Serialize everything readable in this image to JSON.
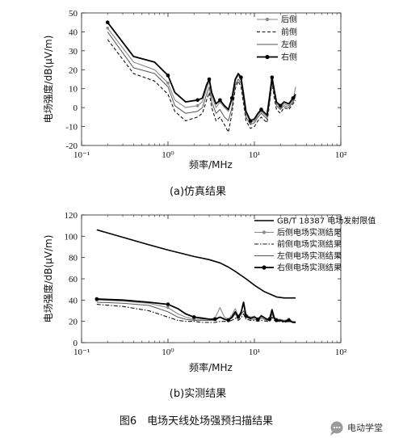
{
  "figure_caption": "图6　电场天线处场强预扫描结果",
  "watermark": {
    "text": "电动学堂",
    "icon": "chat-bubble-icon"
  },
  "chart_data": [
    {
      "type": "line",
      "caption": "(a)仿真结果",
      "xlabel": "频率/MHz",
      "ylabel": "电场强度/dB(μV/m)",
      "xscale": "log",
      "xlim": [
        0.1,
        100
      ],
      "ylim": [
        -20,
        50
      ],
      "x_ticks": [
        0.1,
        1,
        10,
        100
      ],
      "x_tick_labels": [
        "10⁻¹",
        "10⁰",
        "10¹",
        "10²"
      ],
      "y_ticks": [
        -20,
        -10,
        0,
        10,
        20,
        30,
        40,
        50
      ],
      "legend_position": "top-right",
      "grid": false,
      "series": [
        {
          "name": "后侧",
          "style": "solid-dot",
          "color": "#888888",
          "x": [
            0.2,
            0.4,
            0.7,
            1.0,
            1.2,
            1.6,
            2.2,
            2.5,
            2.8,
            3.0,
            3.2,
            3.6,
            4.0,
            4.5,
            5.0,
            5.5,
            6.0,
            6.5,
            7.0,
            7.5,
            8.0,
            9.0,
            10,
            11,
            12,
            14,
            15,
            16,
            17,
            18,
            20,
            22,
            25,
            28,
            30
          ],
          "values": [
            42,
            24,
            20,
            13,
            4,
            0,
            1,
            3,
            10,
            14,
            6,
            0,
            3,
            0,
            -2,
            4,
            14,
            17,
            15,
            6,
            -3,
            -8,
            -7,
            -4,
            -2,
            -5,
            5,
            15,
            8,
            2,
            0,
            2,
            1,
            4,
            11
          ]
        },
        {
          "name": "前侧",
          "style": "dashed",
          "color": "#111111",
          "x": [
            0.2,
            0.4,
            0.7,
            1.0,
            1.2,
            1.6,
            2.2,
            2.5,
            2.8,
            3.0,
            3.2,
            3.6,
            4.0,
            4.5,
            5.0,
            5.5,
            6.0,
            6.5,
            7.0,
            7.5,
            8.0,
            9.0,
            10,
            11,
            12,
            14,
            15,
            16,
            17,
            18,
            20,
            22,
            25,
            28,
            30
          ],
          "values": [
            36,
            18,
            14,
            7,
            -2,
            -7,
            -5,
            -3,
            4,
            8,
            0,
            -7,
            -5,
            -9,
            -13,
            -3,
            10,
            14,
            11,
            2,
            -7,
            -11,
            -10,
            -7,
            -5,
            -8,
            2,
            13,
            5,
            -1,
            -3,
            0,
            -1,
            2,
            4
          ]
        },
        {
          "name": "左侧",
          "style": "solid",
          "color": "#555555",
          "x": [
            0.2,
            0.4,
            0.7,
            1.0,
            1.2,
            1.6,
            2.2,
            2.5,
            2.8,
            3.0,
            3.2,
            3.6,
            4.0,
            4.5,
            5.0,
            5.5,
            6.0,
            6.5,
            7.0,
            7.5,
            8.0,
            9.0,
            10,
            11,
            12,
            14,
            15,
            16,
            17,
            18,
            20,
            22,
            25,
            28,
            30
          ],
          "values": [
            40,
            21,
            18,
            11,
            1,
            -3,
            -2,
            0,
            7,
            11,
            3,
            -3,
            -1,
            -5,
            -7,
            0,
            12,
            15,
            13,
            4,
            -5,
            -9,
            -8,
            -5,
            -3,
            -6,
            3,
            14,
            7,
            1,
            -1,
            1,
            0,
            3,
            6
          ]
        },
        {
          "name": "右侧",
          "style": "bold-dot",
          "color": "#000000",
          "x": [
            0.2,
            0.4,
            0.7,
            1.0,
            1.2,
            1.6,
            2.2,
            2.5,
            2.8,
            3.0,
            3.2,
            3.6,
            4.0,
            4.5,
            5.0,
            5.5,
            6.0,
            6.5,
            7.0,
            7.5,
            8.0,
            9.0,
            10,
            11,
            12,
            14,
            15,
            16,
            17,
            18,
            20,
            22,
            25,
            28,
            30
          ],
          "values": [
            45,
            27,
            24,
            17,
            8,
            3,
            4,
            5,
            12,
            15,
            8,
            2,
            4,
            1,
            -1,
            5,
            15,
            18,
            16,
            7,
            -2,
            -7,
            -6,
            -3,
            -1,
            -4,
            6,
            16,
            9,
            3,
            1,
            3,
            2,
            5,
            7
          ]
        }
      ]
    },
    {
      "type": "line",
      "caption": "(b)实测结果",
      "xlabel": "频率/MHz",
      "ylabel": "电场强度/dB(μV/m)",
      "xscale": "log",
      "xlim": [
        0.1,
        100
      ],
      "ylim": [
        0,
        120
      ],
      "x_ticks": [
        0.1,
        1,
        10,
        100
      ],
      "x_tick_labels": [
        "10⁻¹",
        "10⁰",
        "10¹",
        "10²"
      ],
      "y_ticks": [
        0,
        20,
        40,
        60,
        80,
        100,
        120
      ],
      "legend_position": "top-right",
      "grid": false,
      "series": [
        {
          "name": "GB/T 18387 电场发射限值",
          "style": "thick-solid",
          "color": "#000000",
          "x": [
            0.15,
            0.3,
            0.6,
            1.0,
            2.0,
            3.0,
            4.0,
            5.0,
            6.0,
            8.0,
            10,
            13,
            18,
            22,
            30
          ],
          "values": [
            106,
            99,
            92,
            87,
            81,
            78,
            75,
            71,
            67,
            60,
            54,
            48,
            43,
            42,
            42
          ]
        },
        {
          "name": "后侧电场实测结果",
          "style": "solid-dot",
          "color": "#888888",
          "x": [
            0.15,
            0.3,
            0.6,
            1.0,
            1.3,
            1.6,
            2.0,
            2.5,
            3.0,
            3.5,
            4.0,
            4.5,
            5.0,
            5.5,
            6.0,
            6.5,
            7.0,
            7.5,
            8.0,
            9.0,
            10,
            11,
            12,
            14,
            15,
            16,
            17,
            18,
            20,
            22,
            25,
            28,
            30
          ],
          "values": [
            40,
            39,
            37,
            33,
            27,
            24,
            22,
            22,
            22,
            23,
            33,
            24,
            22,
            26,
            32,
            25,
            29,
            36,
            26,
            24,
            25,
            22,
            26,
            22,
            23,
            30,
            24,
            22,
            22,
            21,
            22,
            20,
            20
          ]
        },
        {
          "name": "前侧电场实测结果",
          "style": "dash-dot",
          "color": "#111111",
          "x": [
            0.15,
            0.3,
            0.6,
            1.0,
            1.3,
            1.6,
            2.0,
            2.5,
            3.0,
            3.5,
            4.0,
            4.5,
            5.0,
            5.5,
            6.0,
            6.5,
            7.0,
            7.5,
            8.0,
            9.0,
            10,
            11,
            12,
            14,
            15,
            16,
            17,
            18,
            20,
            22,
            25,
            28,
            30
          ],
          "values": [
            36,
            34,
            30,
            24,
            21,
            20,
            20,
            19,
            19,
            19,
            20,
            20,
            20,
            21,
            23,
            21,
            23,
            27,
            22,
            21,
            21,
            20,
            21,
            20,
            20,
            24,
            21,
            20,
            20,
            19,
            20,
            19,
            19
          ]
        },
        {
          "name": "左侧电场实测结果",
          "style": "solid",
          "color": "#555555",
          "x": [
            0.15,
            0.3,
            0.6,
            1.0,
            1.3,
            1.6,
            2.0,
            2.5,
            3.0,
            3.5,
            4.0,
            4.5,
            5.0,
            5.5,
            6.0,
            6.5,
            7.0,
            7.5,
            8.0,
            9.0,
            10,
            11,
            12,
            14,
            15,
            16,
            17,
            18,
            20,
            22,
            25,
            28,
            30
          ],
          "values": [
            38,
            37,
            35,
            29,
            24,
            22,
            21,
            21,
            21,
            21,
            24,
            22,
            21,
            23,
            27,
            23,
            26,
            30,
            24,
            22,
            22,
            21,
            23,
            21,
            21,
            27,
            22,
            21,
            21,
            20,
            21,
            19,
            19
          ]
        },
        {
          "name": "右侧电场实测结果",
          "style": "bold-dot",
          "color": "#000000",
          "x": [
            0.15,
            0.3,
            0.6,
            1.0,
            1.3,
            1.6,
            2.0,
            2.5,
            3.0,
            3.5,
            4.0,
            4.5,
            5.0,
            5.5,
            6.0,
            6.5,
            7.0,
            7.5,
            8.0,
            9.0,
            10,
            11,
            12,
            14,
            15,
            16,
            17,
            18,
            20,
            22,
            25,
            28,
            30
          ],
          "values": [
            41,
            40,
            38,
            36,
            32,
            27,
            24,
            23,
            22,
            22,
            24,
            22,
            21,
            24,
            29,
            24,
            28,
            38,
            25,
            23,
            24,
            22,
            25,
            22,
            22,
            31,
            23,
            21,
            21,
            20,
            21,
            19,
            19
          ]
        }
      ]
    }
  ]
}
